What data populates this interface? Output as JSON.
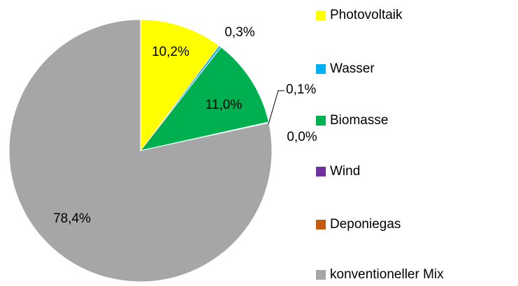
{
  "chart_data": {
    "type": "pie",
    "categories": [
      "Photovoltaik",
      "Wasser",
      "Biomasse",
      "Wind",
      "Deponiegas",
      "konventioneller Mix"
    ],
    "values": [
      10.2,
      0.3,
      11.0,
      0.1,
      0.0,
      78.4
    ],
    "value_labels": [
      "10,2%",
      "0,3%",
      "11,0%",
      "0,1%",
      "0,0%",
      "78,4%"
    ],
    "colors": [
      "#ffff00",
      "#00b0f0",
      "#00b050",
      "#7030a0",
      "#c55a11",
      "#a6a6a6"
    ],
    "legend": "right"
  }
}
